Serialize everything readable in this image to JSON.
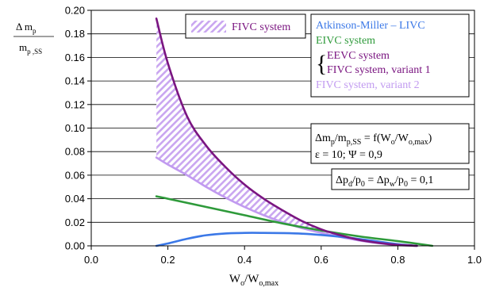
{
  "chart_data": {
    "type": "line",
    "xlabel": {
      "main": "W",
      "sub1": "o",
      "mid": "/W",
      "sub2": "o,max"
    },
    "ylabel": {
      "num": {
        "main": "Δ m",
        "sub": "p"
      },
      "den": {
        "main": "m",
        "sub": "p ,SS"
      }
    },
    "xlim": [
      0.0,
      1.0
    ],
    "ylim": [
      0.0,
      0.2
    ],
    "x_ticks": [
      "0.0",
      "0.2",
      "0.4",
      "0.6",
      "0.8",
      "1.0"
    ],
    "y_ticks": [
      "0.00",
      "0.02",
      "0.04",
      "0.06",
      "0.08",
      "0.10",
      "0.12",
      "0.14",
      "0.16",
      "0.18",
      "0.20"
    ],
    "grid": "horizontal",
    "hatched_region": {
      "label": "FIVC system",
      "color": "#c9a6f0",
      "between": [
        "EEVC / FIVC variant 1",
        "FIVC variant 2"
      ]
    },
    "series": [
      {
        "name": "Atkinson-Miller – LIVC",
        "color": "#3b78e7",
        "x": [
          0.17,
          0.2,
          0.25,
          0.3,
          0.35,
          0.4,
          0.45,
          0.5,
          0.55,
          0.6,
          0.65,
          0.7,
          0.75,
          0.8,
          0.85
        ],
        "y": [
          0.0,
          0.002,
          0.006,
          0.009,
          0.0105,
          0.011,
          0.011,
          0.0108,
          0.0103,
          0.0092,
          0.0077,
          0.0058,
          0.0036,
          0.0014,
          0.0
        ]
      },
      {
        "name": "EIVC system",
        "color": "#2e9a3a",
        "x": [
          0.17,
          0.2,
          0.3,
          0.4,
          0.5,
          0.6,
          0.7,
          0.8,
          0.89
        ],
        "y": [
          0.042,
          0.04,
          0.033,
          0.026,
          0.019,
          0.013,
          0.008,
          0.004,
          0.0
        ]
      },
      {
        "name": "EEVC system / FIVC system, variant 1",
        "color": "#7a1580",
        "x": [
          0.17,
          0.2,
          0.25,
          0.3,
          0.35,
          0.4,
          0.45,
          0.5,
          0.55,
          0.6,
          0.65,
          0.7,
          0.75,
          0.8,
          0.85
        ],
        "y": [
          0.193,
          0.155,
          0.11,
          0.085,
          0.067,
          0.052,
          0.04,
          0.03,
          0.021,
          0.014,
          0.009,
          0.005,
          0.0025,
          0.0008,
          0.0
        ]
      },
      {
        "name": "FIVC system, variant 2",
        "color": "#c19af0",
        "x": [
          0.17,
          0.2,
          0.25,
          0.3,
          0.35,
          0.4,
          0.45,
          0.5,
          0.55,
          0.6,
          0.65,
          0.7,
          0.75,
          0.8,
          0.85
        ],
        "y": [
          0.075,
          0.069,
          0.06,
          0.05,
          0.041,
          0.033,
          0.026,
          0.02,
          0.015,
          0.011,
          0.0075,
          0.0045,
          0.0022,
          0.0006,
          0.0
        ]
      }
    ],
    "legend": {
      "placement": "top-right",
      "brace_group": [
        2
      ]
    },
    "annotations": {
      "formula": {
        "a_main": "Δm",
        "a_sub": "p",
        "b_main": "/m",
        "b_sub": "p,SS",
        "c": " = f(W",
        "d_sub": "o",
        "e": "/W",
        "f_sub": "o,max",
        "g": ")"
      },
      "params": "ε = 10; Ψ = 0,9",
      "pressure": {
        "a": "Δp",
        "a_sub": "d",
        "b": "/p",
        "b_sub": "0",
        "c": " = Δp",
        "c_sub": "w",
        "d": "/p",
        "d_sub": "0",
        "e": " = 0,1"
      }
    }
  }
}
